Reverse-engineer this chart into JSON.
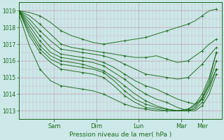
{
  "xlabel": "Pression niveau de la mer( hPa )",
  "bg_color": "#cce8e8",
  "grid_color_minor": "#c8b8c8",
  "line_color": "#1a6b1a",
  "ylim": [
    1012.5,
    1019.5
  ],
  "yticks": [
    1013,
    1014,
    1015,
    1016,
    1017,
    1018,
    1019
  ],
  "xlim": [
    0,
    115
  ],
  "xtick_positions": [
    20,
    44,
    68,
    92,
    104
  ],
  "xtick_labels": [
    "Sam",
    "Dim",
    "Lun",
    "Mar",
    "Mer"
  ],
  "series": [
    {
      "x": [
        0,
        6,
        12,
        18,
        24,
        30,
        36,
        42,
        48,
        54,
        60,
        66,
        72,
        78,
        84,
        90,
        96,
        100,
        104,
        108,
        112
      ],
      "y": [
        1019.0,
        1018.9,
        1018.7,
        1018.3,
        1017.8,
        1017.5,
        1017.3,
        1017.1,
        1017.0,
        1017.1,
        1017.2,
        1017.3,
        1017.4,
        1017.6,
        1017.8,
        1018.0,
        1018.2,
        1018.4,
        1018.7,
        1019.0,
        1019.1
      ]
    },
    {
      "x": [
        0,
        6,
        12,
        18,
        24,
        30,
        36,
        42,
        48,
        54,
        60,
        66,
        72,
        78,
        84,
        90,
        96,
        100,
        104,
        108,
        112
      ],
      "y": [
        1019.0,
        1018.7,
        1018.2,
        1017.6,
        1017.0,
        1016.8,
        1016.7,
        1016.6,
        1016.5,
        1016.4,
        1016.3,
        1016.2,
        1016.2,
        1016.3,
        1016.1,
        1015.9,
        1016.0,
        1016.3,
        1016.6,
        1017.0,
        1017.3
      ]
    },
    {
      "x": [
        0,
        6,
        12,
        18,
        24,
        30,
        36,
        42,
        48,
        54,
        60,
        66,
        72,
        78,
        84,
        90,
        96,
        100,
        104,
        108,
        112
      ],
      "y": [
        1019.0,
        1018.5,
        1017.8,
        1017.2,
        1016.7,
        1016.6,
        1016.5,
        1016.4,
        1016.3,
        1016.1,
        1015.8,
        1015.5,
        1015.2,
        1015.1,
        1015.0,
        1014.9,
        1015.0,
        1015.4,
        1015.8,
        1016.3,
        1016.8
      ]
    },
    {
      "x": [
        0,
        6,
        12,
        18,
        24,
        30,
        36,
        42,
        48,
        54,
        60,
        66,
        72,
        78,
        84,
        90,
        96,
        100,
        104,
        108,
        112
      ],
      "y": [
        1019.0,
        1018.3,
        1017.5,
        1016.8,
        1016.4,
        1016.3,
        1016.2,
        1016.1,
        1015.9,
        1015.6,
        1015.2,
        1014.8,
        1014.5,
        1014.3,
        1014.0,
        1013.7,
        1013.5,
        1013.4,
        1013.7,
        1014.5,
        1015.5
      ]
    },
    {
      "x": [
        0,
        6,
        12,
        18,
        24,
        30,
        36,
        42,
        48,
        54,
        60,
        66,
        72,
        78,
        84,
        90,
        96,
        100,
        104,
        108,
        112
      ],
      "y": [
        1019.0,
        1018.1,
        1017.2,
        1016.5,
        1016.2,
        1016.1,
        1016.0,
        1015.9,
        1015.7,
        1015.3,
        1014.9,
        1014.4,
        1014.0,
        1013.7,
        1013.5,
        1013.2,
        1013.0,
        1013.0,
        1013.3,
        1014.0,
        1015.2
      ]
    },
    {
      "x": [
        0,
        6,
        12,
        18,
        24,
        30,
        36,
        42,
        48,
        54,
        60,
        66,
        72,
        78,
        84,
        90,
        96,
        100,
        104,
        108,
        112
      ],
      "y": [
        1019.0,
        1017.9,
        1016.9,
        1016.3,
        1016.0,
        1015.9,
        1015.8,
        1015.6,
        1015.4,
        1015.0,
        1014.5,
        1014.0,
        1013.6,
        1013.3,
        1013.1,
        1013.0,
        1013.0,
        1013.1,
        1013.5,
        1014.3,
        1015.5
      ]
    },
    {
      "x": [
        0,
        6,
        12,
        18,
        24,
        30,
        36,
        42,
        48,
        54,
        60,
        66,
        72,
        78,
        84,
        90,
        96,
        100,
        104,
        108,
        112
      ],
      "y": [
        1019.0,
        1017.7,
        1016.7,
        1016.1,
        1015.8,
        1015.7,
        1015.6,
        1015.5,
        1015.3,
        1014.8,
        1014.2,
        1013.7,
        1013.4,
        1013.2,
        1013.1,
        1013.0,
        1013.0,
        1013.2,
        1013.7,
        1014.6,
        1016.0
      ]
    },
    {
      "x": [
        0,
        6,
        12,
        18,
        24,
        30,
        36,
        42,
        48,
        54,
        60,
        66,
        72,
        78,
        84,
        90,
        96,
        100,
        104,
        108,
        112
      ],
      "y": [
        1019.0,
        1017.5,
        1016.5,
        1015.9,
        1015.5,
        1015.4,
        1015.3,
        1015.2,
        1015.0,
        1014.5,
        1013.9,
        1013.5,
        1013.2,
        1013.1,
        1013.0,
        1013.0,
        1013.1,
        1013.4,
        1014.0,
        1015.0,
        1016.5
      ]
    },
    {
      "x": [
        0,
        6,
        12,
        18,
        24,
        30,
        36,
        42,
        48,
        54,
        60,
        66,
        72,
        78,
        84,
        90,
        96,
        100,
        104,
        108,
        112
      ],
      "y": [
        1018.8,
        1016.9,
        1015.5,
        1014.8,
        1014.5,
        1014.4,
        1014.3,
        1014.2,
        1014.0,
        1013.7,
        1013.4,
        1013.2,
        1013.1,
        1013.0,
        1013.0,
        1013.0,
        1013.1,
        1013.3,
        1013.8,
        1014.8,
        1016.5
      ]
    }
  ]
}
